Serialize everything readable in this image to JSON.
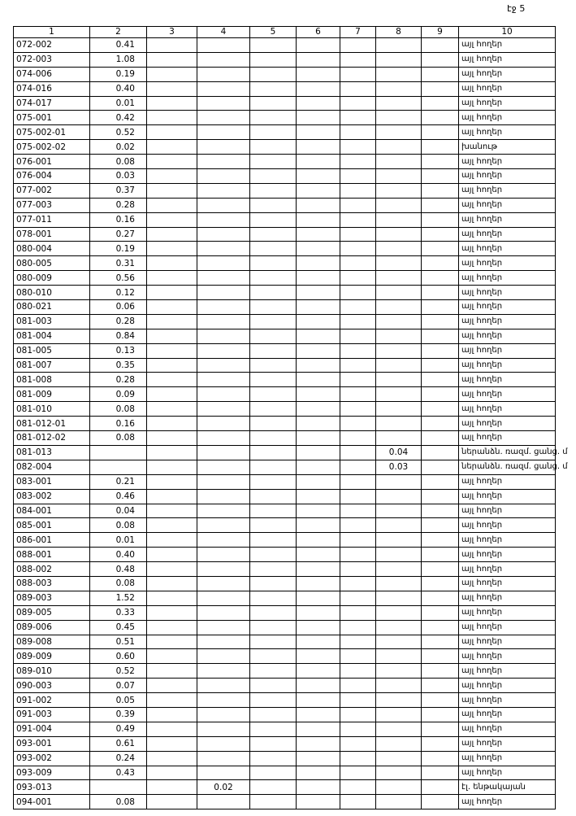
{
  "page_label": "էջ 5",
  "table": {
    "header": [
      "1",
      "2",
      "3",
      "4",
      "5",
      "6",
      "7",
      "8",
      "9",
      "10"
    ],
    "rows": [
      [
        "072-002",
        "0.41",
        null,
        null,
        null,
        null,
        null,
        null,
        null,
        "այլ հողեր"
      ],
      [
        "072-003",
        "1.08",
        null,
        null,
        null,
        null,
        null,
        null,
        null,
        "այլ հողեր"
      ],
      [
        "074-006",
        "0.19",
        null,
        null,
        null,
        null,
        null,
        null,
        null,
        "այլ հողեր"
      ],
      [
        "074-016",
        "0.40",
        null,
        null,
        null,
        null,
        null,
        null,
        null,
        "այլ հողեր"
      ],
      [
        "074-017",
        "0.01",
        null,
        null,
        null,
        null,
        null,
        null,
        null,
        "այլ հողեր"
      ],
      [
        "075-001",
        "0.42",
        null,
        null,
        null,
        null,
        null,
        null,
        null,
        "այլ հողեր"
      ],
      [
        "075-002-01",
        "0.52",
        null,
        null,
        null,
        null,
        null,
        null,
        null,
        "այլ հողեր"
      ],
      [
        "075-002-02",
        "0.02",
        null,
        null,
        null,
        null,
        null,
        null,
        null,
        "խանութ"
      ],
      [
        "076-001",
        "0.08",
        null,
        null,
        null,
        null,
        null,
        null,
        null,
        "այլ հողեր"
      ],
      [
        "076-004",
        "0.03",
        null,
        null,
        null,
        null,
        null,
        null,
        null,
        "այլ հողեր"
      ],
      [
        "077-002",
        "0.37",
        null,
        null,
        null,
        null,
        null,
        null,
        null,
        "այլ հողեր"
      ],
      [
        "077-003",
        "0.28",
        null,
        null,
        null,
        null,
        null,
        null,
        null,
        "այլ հողեր"
      ],
      [
        "077-011",
        "0.16",
        null,
        null,
        null,
        null,
        null,
        null,
        null,
        "այլ հողեր"
      ],
      [
        "078-001",
        "0.27",
        null,
        null,
        null,
        null,
        null,
        null,
        null,
        "այլ հողեր"
      ],
      [
        "080-004",
        "0.19",
        null,
        null,
        null,
        null,
        null,
        null,
        null,
        "այլ հողեր"
      ],
      [
        "080-005",
        "0.31",
        null,
        null,
        null,
        null,
        null,
        null,
        null,
        "այլ հողեր"
      ],
      [
        "080-009",
        "0.56",
        null,
        null,
        null,
        null,
        null,
        null,
        null,
        "այլ հողեր"
      ],
      [
        "080-010",
        "0.12",
        null,
        null,
        null,
        null,
        null,
        null,
        null,
        "այլ հողեր"
      ],
      [
        "080-021",
        "0.06",
        null,
        null,
        null,
        null,
        null,
        null,
        null,
        "այլ հողեր"
      ],
      [
        "081-003",
        "0.28",
        null,
        null,
        null,
        null,
        null,
        null,
        null,
        "այլ հողեր"
      ],
      [
        "081-004",
        "0.84",
        null,
        null,
        null,
        null,
        null,
        null,
        null,
        "այլ հողեր"
      ],
      [
        "081-005",
        "0.13",
        null,
        null,
        null,
        null,
        null,
        null,
        null,
        "այլ հողեր"
      ],
      [
        "081-007",
        "0.35",
        null,
        null,
        null,
        null,
        null,
        null,
        null,
        "այլ հողեր"
      ],
      [
        "081-008",
        "0.28",
        null,
        null,
        null,
        null,
        null,
        null,
        null,
        "այլ հողեր"
      ],
      [
        "081-009",
        "0.09",
        null,
        null,
        null,
        null,
        null,
        null,
        null,
        "այլ հողեր"
      ],
      [
        "081-010",
        "0.08",
        null,
        null,
        null,
        null,
        null,
        null,
        null,
        "այլ հողեր"
      ],
      [
        "081-012-01",
        "0.16",
        null,
        null,
        null,
        null,
        null,
        null,
        null,
        "այլ հողեր"
      ],
      [
        "081-012-02",
        "0.08",
        null,
        null,
        null,
        null,
        null,
        null,
        null,
        "այլ հողեր"
      ],
      [
        "081-013",
        null,
        null,
        null,
        null,
        null,
        null,
        "0.04",
        null,
        "ներանձն. ռազմ. ցանց. մ"
      ],
      [
        "082-004",
        null,
        null,
        null,
        null,
        null,
        null,
        "0.03",
        null,
        "ներանձն. ռազմ. ցանց. մ"
      ],
      [
        "083-001",
        "0.21",
        null,
        null,
        null,
        null,
        null,
        null,
        null,
        "այլ հողեր"
      ],
      [
        "083-002",
        "0.46",
        null,
        null,
        null,
        null,
        null,
        null,
        null,
        "այլ հողեր"
      ],
      [
        "084-001",
        "0.04",
        null,
        null,
        null,
        null,
        null,
        null,
        null,
        "այլ հողեր"
      ],
      [
        "085-001",
        "0.08",
        null,
        null,
        null,
        null,
        null,
        null,
        null,
        "այլ հողեր"
      ],
      [
        "086-001",
        "0.01",
        null,
        null,
        null,
        null,
        null,
        null,
        null,
        "այլ հողեր"
      ],
      [
        "088-001",
        "0.40",
        null,
        null,
        null,
        null,
        null,
        null,
        null,
        "այլ հողեր"
      ],
      [
        "088-002",
        "0.48",
        null,
        null,
        null,
        null,
        null,
        null,
        null,
        "այլ հողեր"
      ],
      [
        "088-003",
        "0.08",
        null,
        null,
        null,
        null,
        null,
        null,
        null,
        "այլ հողեր"
      ],
      [
        "089-003",
        "1.52",
        null,
        null,
        null,
        null,
        null,
        null,
        null,
        "այլ հողեր"
      ],
      [
        "089-005",
        "0.33",
        null,
        null,
        null,
        null,
        null,
        null,
        null,
        "այլ հողեր"
      ],
      [
        "089-006",
        "0.45",
        null,
        null,
        null,
        null,
        null,
        null,
        null,
        "այլ հողեր"
      ],
      [
        "089-008",
        "0.51",
        null,
        null,
        null,
        null,
        null,
        null,
        null,
        "այլ հողեր"
      ],
      [
        "089-009",
        "0.60",
        null,
        null,
        null,
        null,
        null,
        null,
        null,
        "այլ հողեր"
      ],
      [
        "089-010",
        "0.52",
        null,
        null,
        null,
        null,
        null,
        null,
        null,
        "այլ հողեր"
      ],
      [
        "090-003",
        "0.07",
        null,
        null,
        null,
        null,
        null,
        null,
        null,
        "այլ հողեր"
      ],
      [
        "091-002",
        "0.05",
        null,
        null,
        null,
        null,
        null,
        null,
        null,
        "այլ հողեր"
      ],
      [
        "091-003",
        "0.39",
        null,
        null,
        null,
        null,
        null,
        null,
        null,
        "այլ հողեր"
      ],
      [
        "091-004",
        "0.49",
        null,
        null,
        null,
        null,
        null,
        null,
        null,
        "այլ հողեր"
      ],
      [
        "093-001",
        "0.61",
        null,
        null,
        null,
        null,
        null,
        null,
        null,
        "այլ հողեր"
      ],
      [
        "093-002",
        "0.24",
        null,
        null,
        null,
        null,
        null,
        null,
        null,
        "այլ հողեր"
      ],
      [
        "093-009",
        "0.43",
        null,
        null,
        null,
        null,
        null,
        null,
        null,
        "այլ հողեր"
      ],
      [
        "093-013",
        null,
        null,
        "0.02",
        null,
        null,
        null,
        null,
        null,
        "էլ. ենթակայան"
      ],
      [
        "094-001",
        "0.08",
        null,
        null,
        null,
        null,
        null,
        null,
        null,
        "այլ հողեր"
      ]
    ]
  }
}
